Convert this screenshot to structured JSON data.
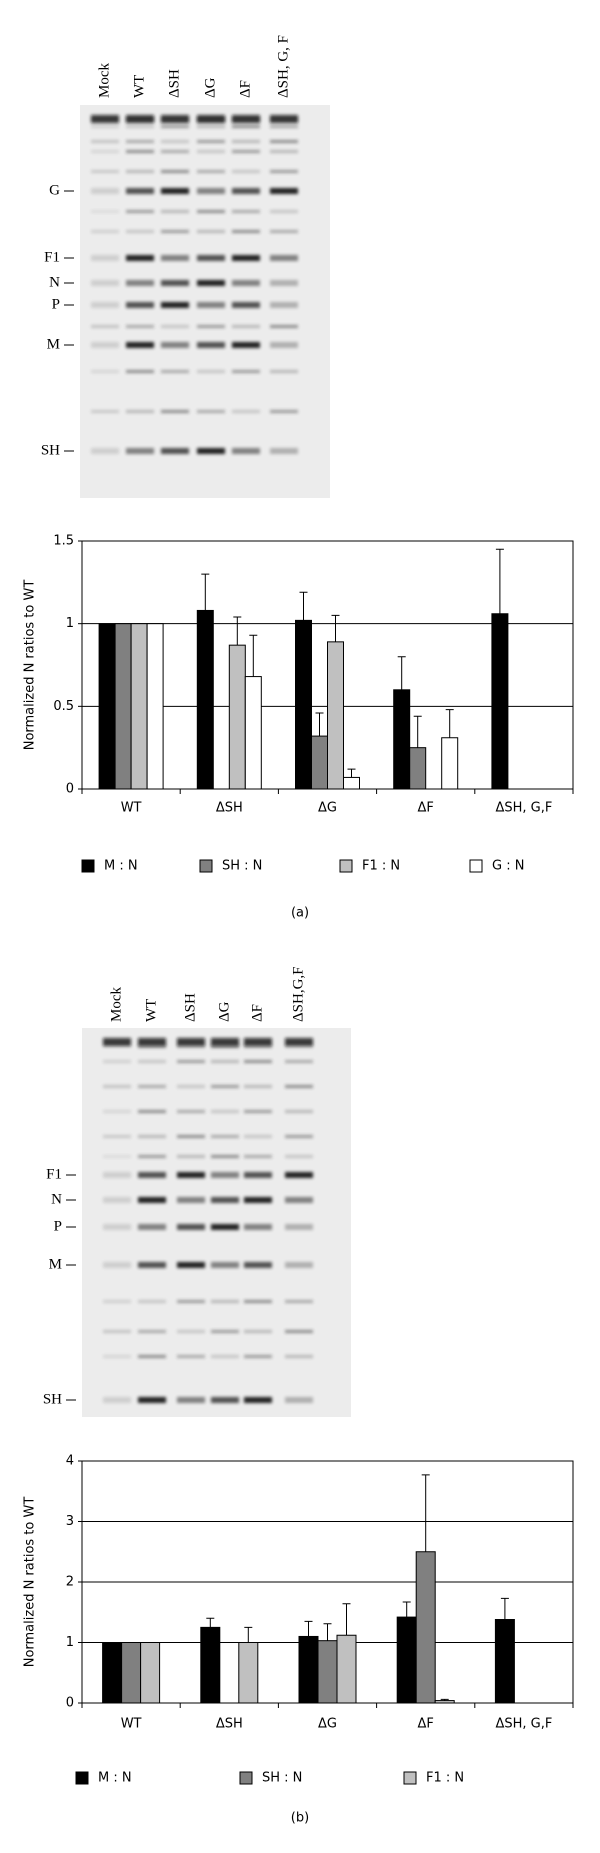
{
  "gels": [
    {
      "lanes": [
        "Mock",
        "WT",
        "ΔSH",
        "ΔG",
        "ΔF",
        "ΔSH, G, F"
      ],
      "markers": [
        "G",
        "F1",
        "N",
        "P",
        "M",
        "SH"
      ]
    },
    {
      "lanes": [
        "Mock",
        "WT",
        "ΔSH",
        "ΔG",
        "ΔF",
        "ΔSH,G,F"
      ],
      "markers": [
        "F1",
        "N",
        "P",
        "M",
        "SH"
      ]
    }
  ],
  "captions": [
    "(a)",
    "(b)"
  ],
  "chart_data": [
    {
      "type": "bar",
      "ylabel": "Normalized N ratios to WT",
      "categories": [
        "WT",
        "ΔSH",
        "ΔG",
        "ΔF",
        "ΔSH, G,F"
      ],
      "series": [
        {
          "name": "M : N",
          "color": "#000000",
          "values": [
            1,
            1.08,
            1.02,
            0.6,
            1.06
          ],
          "errors": [
            null,
            0.22,
            0.17,
            0.2,
            0.39
          ]
        },
        {
          "name": "SH : N",
          "color": "#808080",
          "values": [
            1,
            0,
            0.32,
            0.25,
            0
          ],
          "errors": [
            null,
            null,
            0.14,
            0.19,
            null
          ]
        },
        {
          "name": "F1 : N",
          "color": "#c0c0c0",
          "values": [
            1,
            0.87,
            0.89,
            0,
            0
          ],
          "errors": [
            null,
            0.17,
            0.16,
            null,
            null
          ]
        },
        {
          "name": "G : N",
          "color": "#ffffff",
          "values": [
            1,
            0.68,
            0.07,
            0.31,
            0
          ],
          "errors": [
            null,
            0.25,
            0.05,
            0.17,
            null
          ]
        }
      ],
      "ylim": [
        0,
        1.5
      ],
      "yticks": [
        0,
        0.5,
        1,
        1.5
      ],
      "grid": true
    },
    {
      "type": "bar",
      "ylabel": "Normalized N ratios to WT",
      "categories": [
        "WT",
        "ΔSH",
        "ΔG",
        "ΔF",
        "ΔSH, G,F"
      ],
      "series": [
        {
          "name": "M : N",
          "color": "#000000",
          "values": [
            1,
            1.25,
            1.1,
            1.42,
            1.38
          ],
          "errors": [
            null,
            0.15,
            0.25,
            0.25,
            0.35
          ]
        },
        {
          "name": "SH : N",
          "color": "#808080",
          "values": [
            1,
            0,
            1.03,
            2.5,
            0
          ],
          "errors": [
            null,
            null,
            0.28,
            1.27,
            null
          ]
        },
        {
          "name": "F1 : N",
          "color": "#c0c0c0",
          "values": [
            1,
            1.0,
            1.12,
            0.04,
            0
          ],
          "errors": [
            null,
            0.25,
            0.52,
            0.02,
            null
          ]
        }
      ],
      "ylim": [
        0,
        4
      ],
      "yticks": [
        0,
        1,
        2,
        3,
        4
      ],
      "grid": true
    }
  ]
}
